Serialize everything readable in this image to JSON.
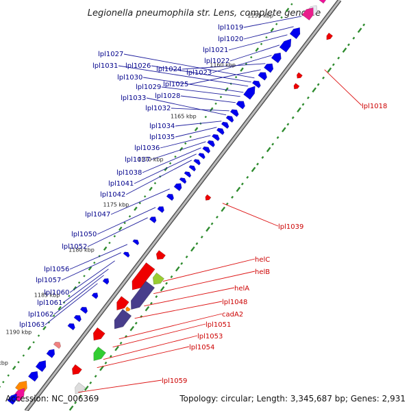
{
  "title": "Legionella pneumophila str. Lens, complete genome",
  "footer": {
    "accession": "Accession: NC_006369",
    "summary": "Topology: circular; Length: 3,345,687 bp; Genes: 2,931"
  },
  "colors": {
    "forward_gene": "#0000ee",
    "reverse_gene": "#ee0000",
    "forward_label": "#00008b",
    "reverse_label": "#cc0000",
    "backbone": "#888888",
    "gc_ticks": "#228b22"
  },
  "kbp_marks": [
    "1150 kbp",
    "1155 kbp",
    "1160 kbp",
    "1165 kbp",
    "1170 kbp",
    "1175 kbp",
    "1180 kbp",
    "1185 kbp",
    "1190 kbp",
    "1195 kbp"
  ],
  "forward_labels": [
    "lpl1019",
    "lpl1020",
    "lpl1021",
    "lpl1022",
    "lpl1023",
    "lpl1027",
    "lpl1031",
    "lpl1026",
    "lpl1030",
    "lpl1024",
    "lpl1025",
    "lpl1029",
    "lpl1028",
    "lpl1033",
    "lpl1032",
    "lpl1034",
    "lpl1035",
    "lpl1036",
    "lpl1037",
    "lpl1038",
    "lpl1041",
    "lpl1042",
    "lpl1047",
    "lpl1050",
    "lpl1052",
    "lpl1056",
    "lpl1057",
    "lpl1060",
    "lpl1061",
    "lpl1062",
    "lpl1063"
  ],
  "reverse_labels": [
    "lpl1018",
    "lpl1039",
    "helC",
    "helB",
    "helA",
    "lpl1048",
    "cadA2",
    "lpl1051",
    "lpl1053",
    "lpl1054",
    "lpl1059"
  ]
}
